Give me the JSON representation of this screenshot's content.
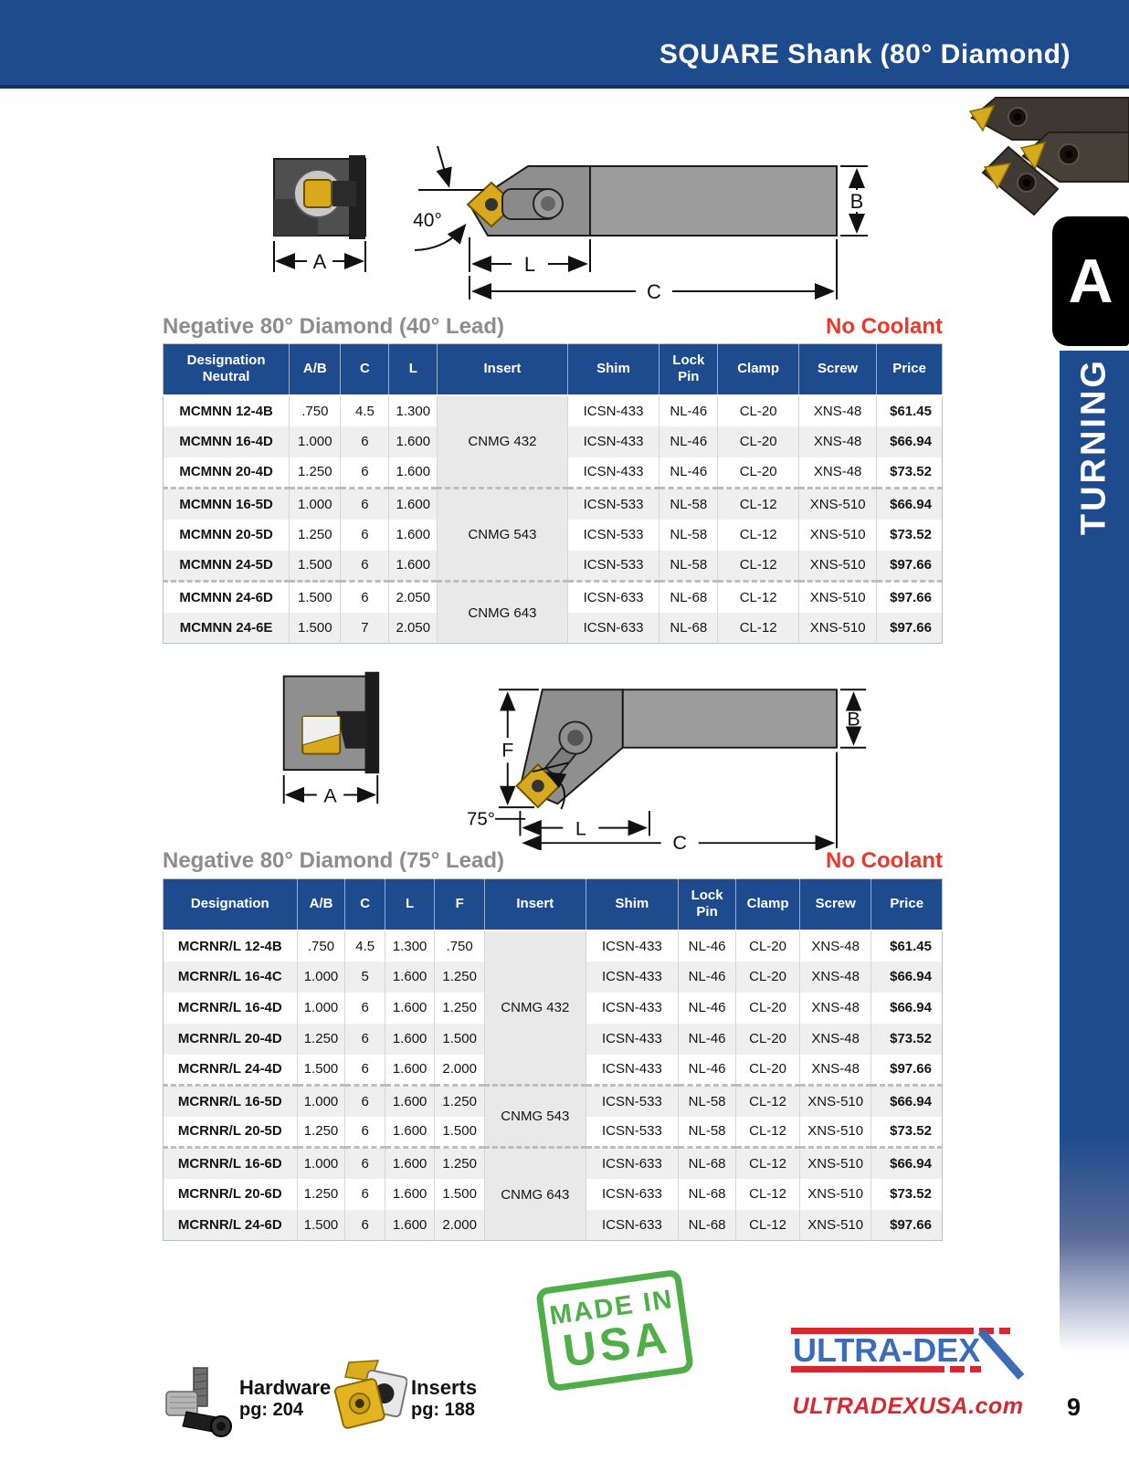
{
  "header": {
    "title": "SQUARE Shank (80° Diamond)"
  },
  "sidebar": {
    "tab_letter": "A",
    "label": "TURNING"
  },
  "colors": {
    "header_blue": "#1d4b8d",
    "table_header_blue": "#1e4b8e",
    "no_coolant_red": "#e8392b",
    "section_title_gray": "#8d8d8d",
    "stamp_green": "#4fae47",
    "logo_blue": "#3c6cb8",
    "logo_red": "#d7282f",
    "insert_gold": "#d9a91d"
  },
  "diagrams": [
    {
      "angle": "40°",
      "labels": {
        "a": "A",
        "b": "B",
        "c": "C",
        "l": "L"
      }
    },
    {
      "angle": "75°",
      "labels": {
        "a": "A",
        "b": "B",
        "c": "C",
        "l": "L",
        "f": "F"
      }
    }
  ],
  "sections": [
    {
      "title": "Negative 80° Diamond (40° Lead)",
      "coolant": "No Coolant"
    },
    {
      "title": "Negative 80° Diamond (75° Lead)",
      "coolant": "No Coolant"
    }
  ],
  "tables": [
    {
      "columns": [
        {
          "key": "designation",
          "label": "Designation",
          "sub": "Neutral",
          "width": "16.2%"
        },
        {
          "key": "ab",
          "label": "A/B",
          "width": "6.6%"
        },
        {
          "key": "c",
          "label": "C",
          "width": "6.2%"
        },
        {
          "key": "l",
          "label": "L",
          "width": "6.2%"
        },
        {
          "key": "insert",
          "label": "Insert",
          "width": "16.7%"
        },
        {
          "key": "shim",
          "label": "Shim",
          "width": "11.8%"
        },
        {
          "key": "lock_pin",
          "label": "Lock Pin",
          "width": "7.5%"
        },
        {
          "key": "clamp",
          "label": "Clamp",
          "width": "10.4%"
        },
        {
          "key": "screw",
          "label": "Screw",
          "width": "10.0%"
        },
        {
          "key": "price",
          "label": "Price",
          "width": "8.4%"
        }
      ],
      "rows": [
        {
          "designation": "MCMNN 12-4B",
          "ab": ".750",
          "c": "4.5",
          "l": "1.300",
          "insert": {
            "value": "CNMG 432",
            "span": 3
          },
          "shim": "ICSN-433",
          "lock_pin": "NL-46",
          "clamp": "CL-20",
          "screw": "XNS-48",
          "price": "$61.45"
        },
        {
          "designation": "MCMNN 16-4D",
          "ab": "1.000",
          "c": "6",
          "l": "1.600",
          "shim": "ICSN-433",
          "lock_pin": "NL-46",
          "clamp": "CL-20",
          "screw": "XNS-48",
          "price": "$66.94"
        },
        {
          "designation": "MCMNN 20-4D",
          "ab": "1.250",
          "c": "6",
          "l": "1.600",
          "shim": "ICSN-433",
          "lock_pin": "NL-46",
          "clamp": "CL-20",
          "screw": "XNS-48",
          "price": "$73.52",
          "group_end": true
        },
        {
          "designation": "MCMNN 16-5D",
          "ab": "1.000",
          "c": "6",
          "l": "1.600",
          "insert": {
            "value": "CNMG 543",
            "span": 3
          },
          "shim": "ICSN-533",
          "lock_pin": "NL-58",
          "clamp": "CL-12",
          "screw": "XNS-510",
          "price": "$66.94"
        },
        {
          "designation": "MCMNN 20-5D",
          "ab": "1.250",
          "c": "6",
          "l": "1.600",
          "shim": "ICSN-533",
          "lock_pin": "NL-58",
          "clamp": "CL-12",
          "screw": "XNS-510",
          "price": "$73.52"
        },
        {
          "designation": "MCMNN 24-5D",
          "ab": "1.500",
          "c": "6",
          "l": "1.600",
          "shim": "ICSN-533",
          "lock_pin": "NL-58",
          "clamp": "CL-12",
          "screw": "XNS-510",
          "price": "$97.66",
          "group_end": true
        },
        {
          "designation": "MCMNN 24-6D",
          "ab": "1.500",
          "c": "6",
          "l": "2.050",
          "insert": {
            "value": "CNMG 643",
            "span": 2
          },
          "shim": "ICSN-633",
          "lock_pin": "NL-68",
          "clamp": "CL-12",
          "screw": "XNS-510",
          "price": "$97.66"
        },
        {
          "designation": "MCMNN 24-6E",
          "ab": "1.500",
          "c": "7",
          "l": "2.050",
          "shim": "ICSN-633",
          "lock_pin": "NL-68",
          "clamp": "CL-12",
          "screw": "XNS-510",
          "price": "$97.66"
        }
      ]
    },
    {
      "columns": [
        {
          "key": "designation",
          "label": "Designation",
          "width": "17.2%"
        },
        {
          "key": "ab",
          "label": "A/B",
          "width": "6.2%"
        },
        {
          "key": "c",
          "label": "C",
          "width": "5.1%"
        },
        {
          "key": "l",
          "label": "L",
          "width": "6.4%"
        },
        {
          "key": "f",
          "label": "F",
          "width": "6.4%"
        },
        {
          "key": "insert",
          "label": "Insert",
          "width": "13.0%"
        },
        {
          "key": "shim",
          "label": "Shim",
          "width": "11.9%"
        },
        {
          "key": "lock_pin",
          "label": "Lock Pin",
          "width": "7.4%"
        },
        {
          "key": "clamp",
          "label": "Clamp",
          "width": "8.2%"
        },
        {
          "key": "screw",
          "label": "Screw",
          "width": "9.2%"
        },
        {
          "key": "price",
          "label": "Price",
          "width": "9.1%"
        }
      ],
      "rows": [
        {
          "designation": "MCRNR/L 12-4B",
          "ab": ".750",
          "c": "4.5",
          "l": "1.300",
          "f": ".750",
          "insert": {
            "value": "CNMG 432",
            "span": 5
          },
          "shim": "ICSN-433",
          "lock_pin": "NL-46",
          "clamp": "CL-20",
          "screw": "XNS-48",
          "price": "$61.45"
        },
        {
          "designation": "MCRNR/L 16-4C",
          "ab": "1.000",
          "c": "5",
          "l": "1.600",
          "f": "1.250",
          "shim": "ICSN-433",
          "lock_pin": "NL-46",
          "clamp": "CL-20",
          "screw": "XNS-48",
          "price": "$66.94"
        },
        {
          "designation": "MCRNR/L 16-4D",
          "ab": "1.000",
          "c": "6",
          "l": "1.600",
          "f": "1.250",
          "shim": "ICSN-433",
          "lock_pin": "NL-46",
          "clamp": "CL-20",
          "screw": "XNS-48",
          "price": "$66.94"
        },
        {
          "designation": "MCRNR/L 20-4D",
          "ab": "1.250",
          "c": "6",
          "l": "1.600",
          "f": "1.500",
          "shim": "ICSN-433",
          "lock_pin": "NL-46",
          "clamp": "CL-20",
          "screw": "XNS-48",
          "price": "$73.52"
        },
        {
          "designation": "MCRNR/L 24-4D",
          "ab": "1.500",
          "c": "6",
          "l": "1.600",
          "f": "2.000",
          "shim": "ICSN-433",
          "lock_pin": "NL-46",
          "clamp": "CL-20",
          "screw": "XNS-48",
          "price": "$97.66",
          "group_end": true
        },
        {
          "designation": "MCRNR/L 16-5D",
          "ab": "1.000",
          "c": "6",
          "l": "1.600",
          "f": "1.250",
          "insert": {
            "value": "CNMG 543",
            "span": 2
          },
          "shim": "ICSN-533",
          "lock_pin": "NL-58",
          "clamp": "CL-12",
          "screw": "XNS-510",
          "price": "$66.94"
        },
        {
          "designation": "MCRNR/L 20-5D",
          "ab": "1.250",
          "c": "6",
          "l": "1.600",
          "f": "1.500",
          "shim": "ICSN-533",
          "lock_pin": "NL-58",
          "clamp": "CL-12",
          "screw": "XNS-510",
          "price": "$73.52",
          "group_end": true
        },
        {
          "designation": "MCRNR/L 16-6D",
          "ab": "1.000",
          "c": "6",
          "l": "1.600",
          "f": "1.250",
          "insert": {
            "value": "CNMG 643",
            "span": 3
          },
          "shim": "ICSN-633",
          "lock_pin": "NL-68",
          "clamp": "CL-12",
          "screw": "XNS-510",
          "price": "$66.94"
        },
        {
          "designation": "MCRNR/L 20-6D",
          "ab": "1.250",
          "c": "6",
          "l": "1.600",
          "f": "1.500",
          "shim": "ICSN-633",
          "lock_pin": "NL-68",
          "clamp": "CL-12",
          "screw": "XNS-510",
          "price": "$73.52"
        },
        {
          "designation": "MCRNR/L 24-6D",
          "ab": "1.500",
          "c": "6",
          "l": "1.600",
          "f": "2.000",
          "shim": "ICSN-633",
          "lock_pin": "NL-68",
          "clamp": "CL-12",
          "screw": "XNS-510",
          "price": "$97.66"
        }
      ]
    }
  ],
  "stamp": {
    "line1": "MADE IN",
    "line2": "USA"
  },
  "footer": {
    "hardware_label": "Hardware",
    "hardware_page": "pg: 204",
    "inserts_label": "Inserts",
    "inserts_page": "pg: 188",
    "brand": "ULTRA-DEX",
    "website": "ULTRADEXUSA.com",
    "page_number": "9"
  }
}
